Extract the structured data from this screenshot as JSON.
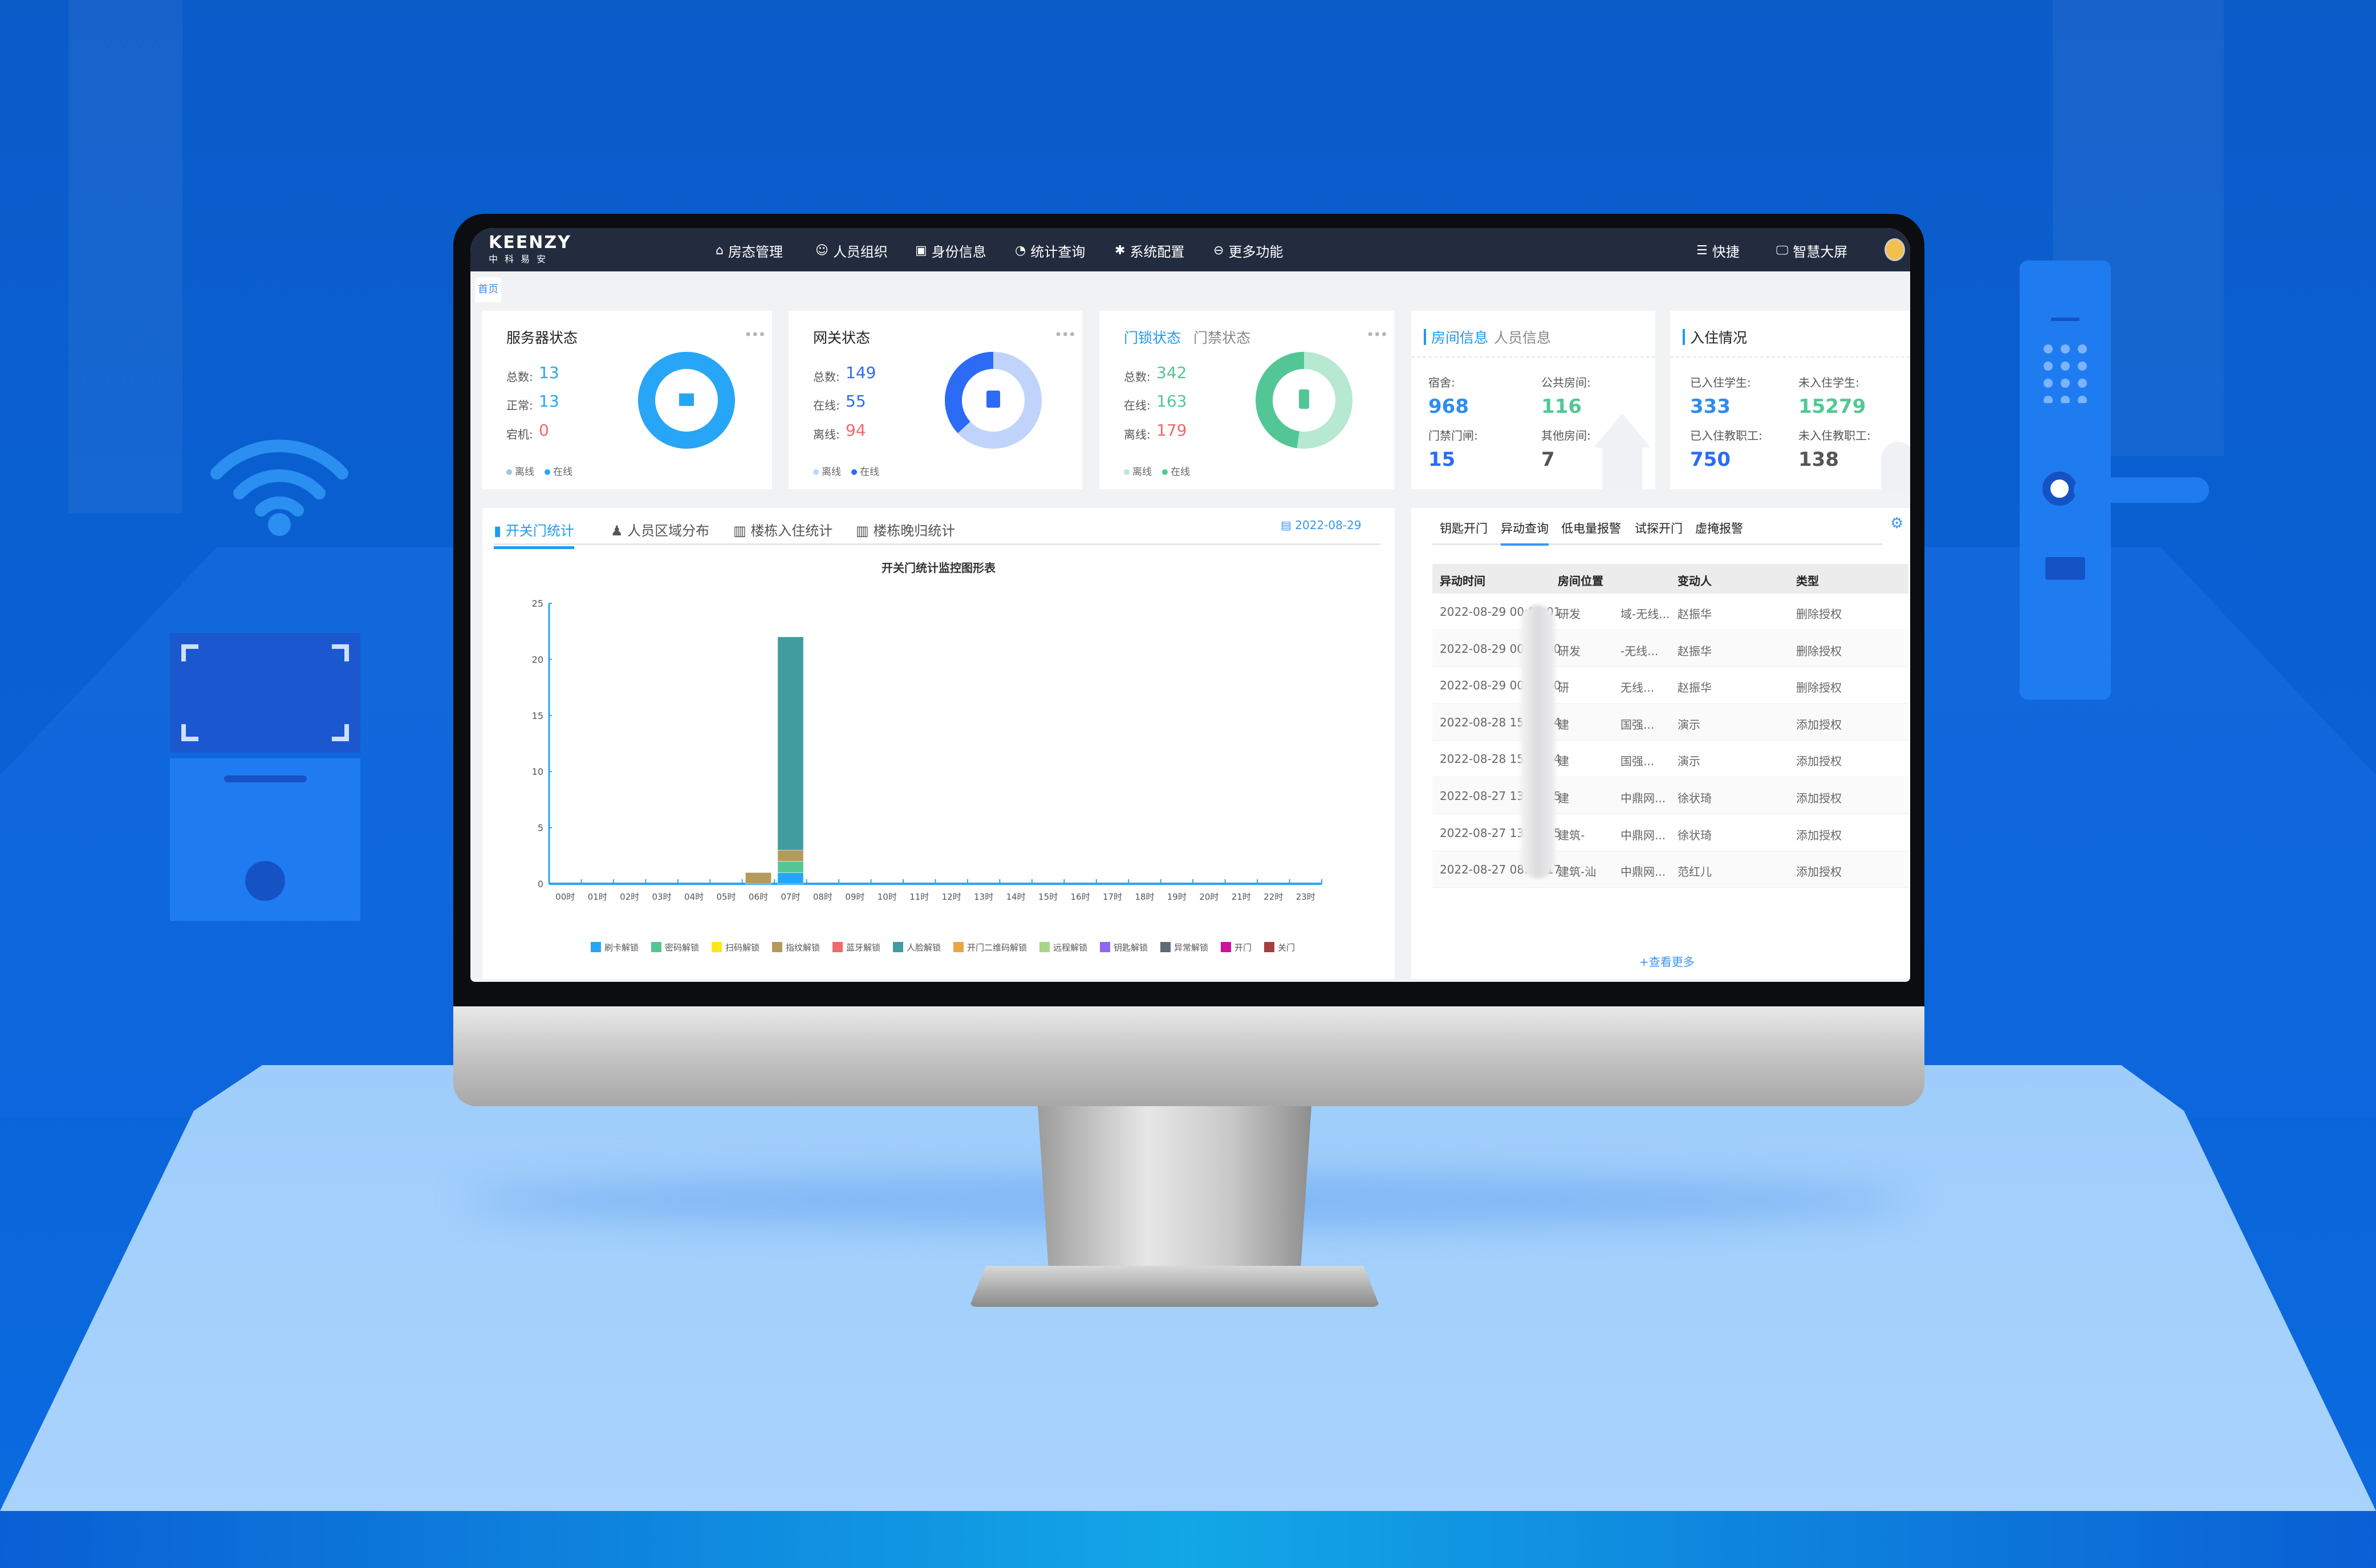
{
  "nav": {
    "logo_en": "KEENZY",
    "logo_cn": "中科易安",
    "items": [
      {
        "label": "房态管理",
        "icon": "home-icon"
      },
      {
        "label": "人员组织",
        "icon": "users-icon"
      },
      {
        "label": "身份信息",
        "icon": "id-card-icon"
      },
      {
        "label": "统计查询",
        "icon": "pie-chart-icon"
      },
      {
        "label": "系统配置",
        "icon": "gear-icon"
      },
      {
        "label": "更多功能",
        "icon": "more-icon"
      }
    ],
    "shortcut": "快捷",
    "bigscreen": "智慧大屏"
  },
  "tabs": {
    "home": "首页"
  },
  "cards": {
    "server": {
      "title": "服务器状态",
      "total_label": "总数:",
      "total": "13",
      "normal_label": "正常:",
      "normal": "13",
      "down_label": "宕机:",
      "down": "0",
      "legend": [
        "离线",
        "在线"
      ],
      "colors": {
        "online": "#27a6f7",
        "offline": "#9ec8e6"
      }
    },
    "gateway": {
      "title": "网关状态",
      "total_label": "总数:",
      "total": "149",
      "online_label": "在线:",
      "online": "55",
      "offline_label": "离线:",
      "offline": "94",
      "legend": [
        "离线",
        "在线"
      ],
      "colors": {
        "online": "#2b6bf6",
        "offline": "#c0d3fb"
      }
    },
    "door": {
      "tab_active": "门锁状态",
      "tab_other": "门禁状态",
      "total_label": "总数:",
      "total": "342",
      "online_label": "在线:",
      "online": "163",
      "offline_label": "离线:",
      "offline": "179",
      "legend": [
        "离线",
        "在线"
      ],
      "colors": {
        "online": "#52c795",
        "offline": "#b6e8d2"
      }
    },
    "room": {
      "tab_active": "房间信息",
      "tab_other": "人员信息",
      "items": [
        {
          "label": "宿舍:",
          "value": "968"
        },
        {
          "label": "公共房间:",
          "value": "116"
        },
        {
          "label": "门禁门闸:",
          "value": "15"
        },
        {
          "label": "其他房间:",
          "value": "7"
        }
      ]
    },
    "checkin": {
      "title": "入住情况",
      "items": [
        {
          "label": "已入住学生:",
          "value": "333"
        },
        {
          "label": "未入住学生:",
          "value": "15279"
        },
        {
          "label": "已入住教职工:",
          "value": "750"
        },
        {
          "label": "未入住教职工:",
          "value": "138"
        }
      ]
    }
  },
  "stats_panel": {
    "tabs": [
      "开关门统计",
      "人员区域分布",
      "楼栋入住统计",
      "楼栋晚归统计"
    ],
    "date": "2022-08-29"
  },
  "chart_data": {
    "type": "bar",
    "stacked": true,
    "title": "开关门统计监控图形表",
    "categories": [
      "00时",
      "01时",
      "02时",
      "03时",
      "04时",
      "05时",
      "06时",
      "07时",
      "08时",
      "09时",
      "10时",
      "11时",
      "12时",
      "13时",
      "14时",
      "15时",
      "16时",
      "17时",
      "18时",
      "19时",
      "20时",
      "21时",
      "22时",
      "23时"
    ],
    "ylim": [
      0,
      25
    ],
    "yticks": [
      0,
      5,
      10,
      15,
      20,
      25
    ],
    "legend_position": "bottom",
    "series": [
      {
        "name": "刷卡解锁",
        "color": "#27a6f7",
        "values": [
          0,
          0,
          0,
          0,
          0,
          0,
          0,
          1,
          0,
          0,
          0,
          0,
          0,
          0,
          0,
          0,
          0,
          0,
          0,
          0,
          0,
          0,
          0,
          0
        ]
      },
      {
        "name": "密码解锁",
        "color": "#52c795",
        "values": [
          0,
          0,
          0,
          0,
          0,
          0,
          0,
          1,
          0,
          0,
          0,
          0,
          0,
          0,
          0,
          0,
          0,
          0,
          0,
          0,
          0,
          0,
          0,
          0
        ]
      },
      {
        "name": "扫码解锁",
        "color": "#ffe51a",
        "values": [
          0,
          0,
          0,
          0,
          0,
          0,
          0,
          0,
          0,
          0,
          0,
          0,
          0,
          0,
          0,
          0,
          0,
          0,
          0,
          0,
          0,
          0,
          0,
          0
        ]
      },
      {
        "name": "指纹解锁",
        "color": "#b59a5e",
        "values": [
          0,
          0,
          0,
          0,
          0,
          0,
          1,
          1,
          0,
          0,
          0,
          0,
          0,
          0,
          0,
          0,
          0,
          0,
          0,
          0,
          0,
          0,
          0,
          0
        ]
      },
      {
        "name": "蓝牙解锁",
        "color": "#ee6b6b",
        "values": [
          0,
          0,
          0,
          0,
          0,
          0,
          0,
          0,
          0,
          0,
          0,
          0,
          0,
          0,
          0,
          0,
          0,
          0,
          0,
          0,
          0,
          0,
          0,
          0
        ]
      },
      {
        "name": "人脸解锁",
        "color": "#3f9c9f",
        "values": [
          0,
          0,
          0,
          0,
          0,
          0,
          0,
          19,
          0,
          0,
          0,
          0,
          0,
          0,
          0,
          0,
          0,
          0,
          0,
          0,
          0,
          0,
          0,
          0
        ]
      },
      {
        "name": "开门二维码解锁",
        "color": "#eba540",
        "values": [
          0,
          0,
          0,
          0,
          0,
          0,
          0,
          0,
          0,
          0,
          0,
          0,
          0,
          0,
          0,
          0,
          0,
          0,
          0,
          0,
          0,
          0,
          0,
          0
        ]
      },
      {
        "name": "远程解锁",
        "color": "#a9d584",
        "values": [
          0,
          0,
          0,
          0,
          0,
          0,
          0,
          0,
          0,
          0,
          0,
          0,
          0,
          0,
          0,
          0,
          0,
          0,
          0,
          0,
          0,
          0,
          0,
          0
        ]
      },
      {
        "name": "钥匙解锁",
        "color": "#9267f0",
        "values": [
          0,
          0,
          0,
          0,
          0,
          0,
          0,
          0,
          0,
          0,
          0,
          0,
          0,
          0,
          0,
          0,
          0,
          0,
          0,
          0,
          0,
          0,
          0,
          0
        ]
      },
      {
        "name": "异常解锁",
        "color": "#5c6b78",
        "values": [
          0,
          0,
          0,
          0,
          0,
          0,
          0,
          0,
          0,
          0,
          0,
          0,
          0,
          0,
          0,
          0,
          0,
          0,
          0,
          0,
          0,
          0,
          0,
          0
        ]
      },
      {
        "name": "开门",
        "color": "#cc1399",
        "values": [
          0,
          0,
          0,
          0,
          0,
          0,
          0,
          0,
          0,
          0,
          0,
          0,
          0,
          0,
          0,
          0,
          0,
          0,
          0,
          0,
          0,
          0,
          0,
          0
        ]
      },
      {
        "name": "关门",
        "color": "#a83e40",
        "values": [
          0,
          0,
          0,
          0,
          0,
          0,
          0,
          0,
          0,
          0,
          0,
          0,
          0,
          0,
          0,
          0,
          0,
          0,
          0,
          0,
          0,
          0,
          0,
          0
        ]
      }
    ]
  },
  "change_panel": {
    "tabs": [
      "钥匙开门",
      "异动查询",
      "低电量报警",
      "试探开门",
      "虚掩报警"
    ],
    "active_tab": 1,
    "columns": [
      "异动时间",
      "房间位置",
      "变动人",
      "类型"
    ],
    "rows": [
      {
        "time": "2022-08-29 00:00:01",
        "room_start": "研发",
        "room_end": "域-无线...",
        "person": "赵振华",
        "type": "删除授权"
      },
      {
        "time": "2022-08-29 00:00:00",
        "room_start": "研发",
        "room_end": "-无线...",
        "person": "赵振华",
        "type": "删除授权"
      },
      {
        "time": "2022-08-29 00:00:00",
        "room_start": "研",
        "room_end": "无线...",
        "person": "赵振华",
        "type": "删除授权"
      },
      {
        "time": "2022-08-28 15:55:34",
        "room_start": "建",
        "room_end": "国强...",
        "person": "演示",
        "type": "添加授权"
      },
      {
        "time": "2022-08-28 15:55:34",
        "room_start": "建",
        "room_end": "国强...",
        "person": "演示",
        "type": "添加授权"
      },
      {
        "time": "2022-08-27 13:47:15",
        "room_start": "建",
        "room_end": "中鼎网...",
        "person": "徐状琦",
        "type": "添加授权"
      },
      {
        "time": "2022-08-27 13:47:15",
        "room_start": "建筑-",
        "room_end": "中鼎网...",
        "person": "徐状琦",
        "type": "添加授权"
      },
      {
        "time": "2022-08-27 08:05:17",
        "room_start": "建筑-汕",
        "room_end": "中鼎网...",
        "person": "范红儿",
        "type": "添加授权"
      }
    ],
    "more": "+查看更多"
  },
  "colors": {
    "accent": "#1e9bf0",
    "nav_bg": "#232b3e",
    "red": "#f06767",
    "green": "#52c795"
  }
}
